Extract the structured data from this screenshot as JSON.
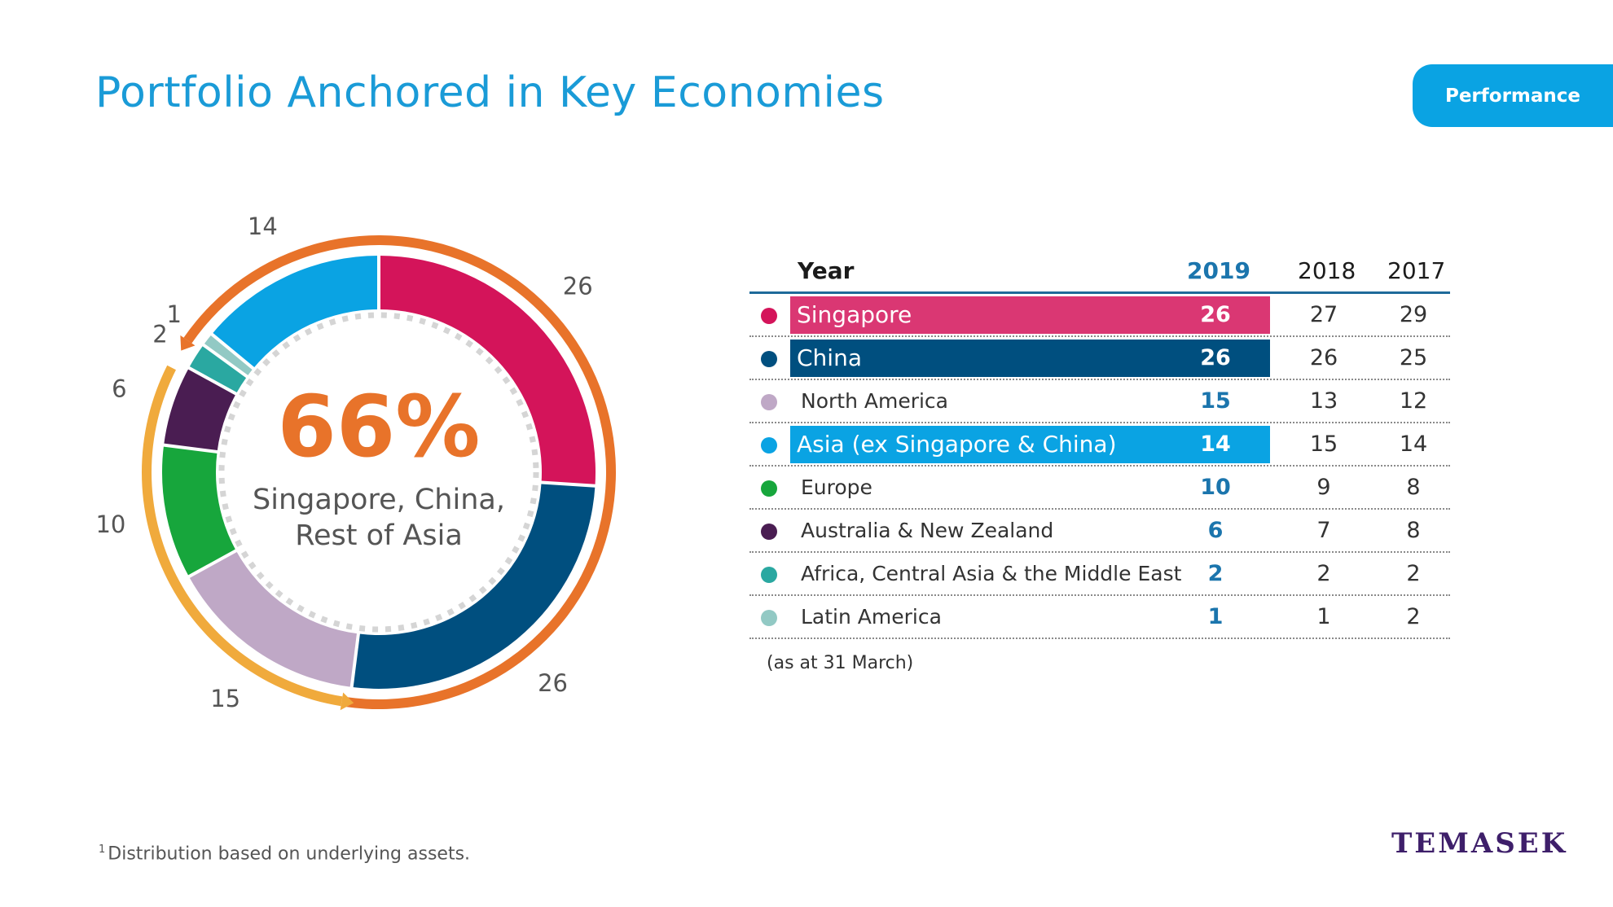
{
  "page": {
    "title": "Portfolio Anchored in Key Economies",
    "tab_label": "Performance",
    "note": "(as at 31 March)",
    "footnote_mark": "1",
    "footnote": "Distribution based on underlying assets.",
    "logo": "TEMASEK"
  },
  "chart_data": {
    "type": "table",
    "center_value": "66%",
    "center_label_line1": "Singapore, China,",
    "center_label_line2": "Rest of Asia",
    "columns": [
      "Year",
      "2019",
      "2018",
      "2017"
    ],
    "rows": [
      {
        "label": "Singapore",
        "v2019": "26",
        "v2018": "27",
        "v2017": "29",
        "color": "#d4145a",
        "highlight": true
      },
      {
        "label": "China",
        "v2019": "26",
        "v2018": "26",
        "v2017": "25",
        "color": "#004f7f",
        "highlight": true
      },
      {
        "label": "North America",
        "v2019": "15",
        "v2018": "13",
        "v2017": "12",
        "color": "#bfa8c6",
        "highlight": false
      },
      {
        "label": "Asia (ex Singapore & China)",
        "v2019": "14",
        "v2018": "15",
        "v2017": "14",
        "color": "#0aa3e3",
        "highlight": true
      },
      {
        "label": "Europe",
        "v2019": "10",
        "v2018": "9",
        "v2017": "8",
        "color": "#17a63c",
        "highlight": false
      },
      {
        "label": "Australia & New Zealand",
        "v2019": "6",
        "v2018": "7",
        "v2017": "8",
        "color": "#4a1d52",
        "highlight": false
      },
      {
        "label": "Africa, Central Asia & the Middle East",
        "v2019": "2",
        "v2018": "2",
        "v2017": "2",
        "color": "#2aa8a1",
        "highlight": false
      },
      {
        "label": "Latin America",
        "v2019": "1",
        "v2018": "1",
        "v2017": "2",
        "color": "#92c9c4",
        "highlight": false
      }
    ],
    "donut_order": [
      "Singapore",
      "China",
      "North America",
      "Europe",
      "Australia & New Zealand",
      "Africa, Central Asia & the Middle East",
      "Latin America",
      "Asia (ex Singapore & China)"
    ],
    "outer_arc_colors": {
      "asia": "#e8732a",
      "other": "#f0aa3c"
    },
    "center_value_color": "#e8732a"
  }
}
